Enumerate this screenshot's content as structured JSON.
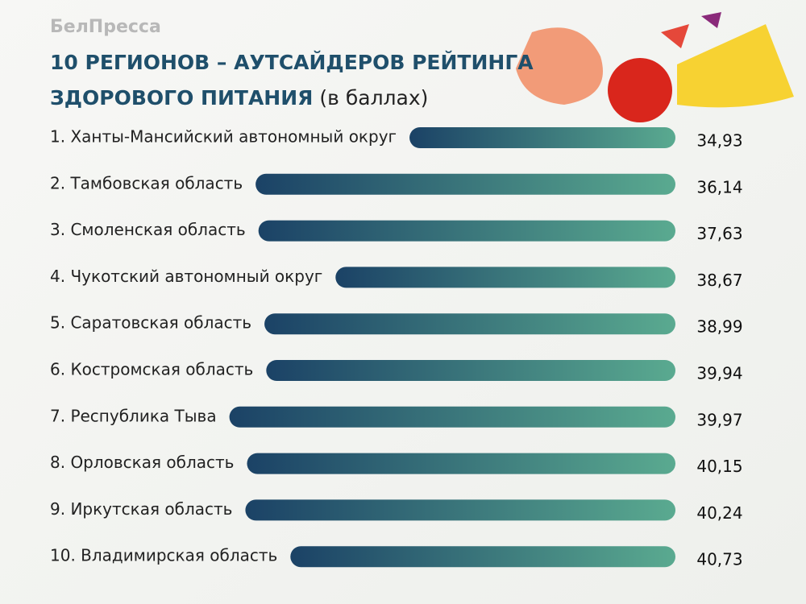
{
  "brand": "БелПресса",
  "chart_data": {
    "type": "bar",
    "title": [
      "10 РЕГИОНОВ – АУТСАЙДЕРОВ РЕЙТИНГА",
      "ЗДОРОВОГО ПИТАНИЯ"
    ],
    "subtitle": "(в баллах)",
    "categories": [
      "1.  Ханты-Мансийский автономный округ",
      "2.  Тамбовская область",
      "3.  Смоленская область",
      "4.  Чукотский автономный округ",
      "5.  Саратовская область",
      "6.  Костромская область",
      "7.  Республика Тыва",
      "8.  Орловская область",
      "9.  Иркутская область",
      "10. Владимирская область"
    ],
    "values": [
      34.93,
      36.14,
      37.63,
      38.67,
      38.99,
      39.94,
      39.97,
      40.15,
      40.24,
      40.73
    ],
    "value_labels": [
      "34,93",
      "36,14",
      "37,63",
      "38,67",
      "38,99",
      "39,94",
      "39,97",
      "40,15",
      "40,24",
      "40,73"
    ],
    "colors": [
      "#1b4266",
      "#5aaa90"
    ]
  }
}
